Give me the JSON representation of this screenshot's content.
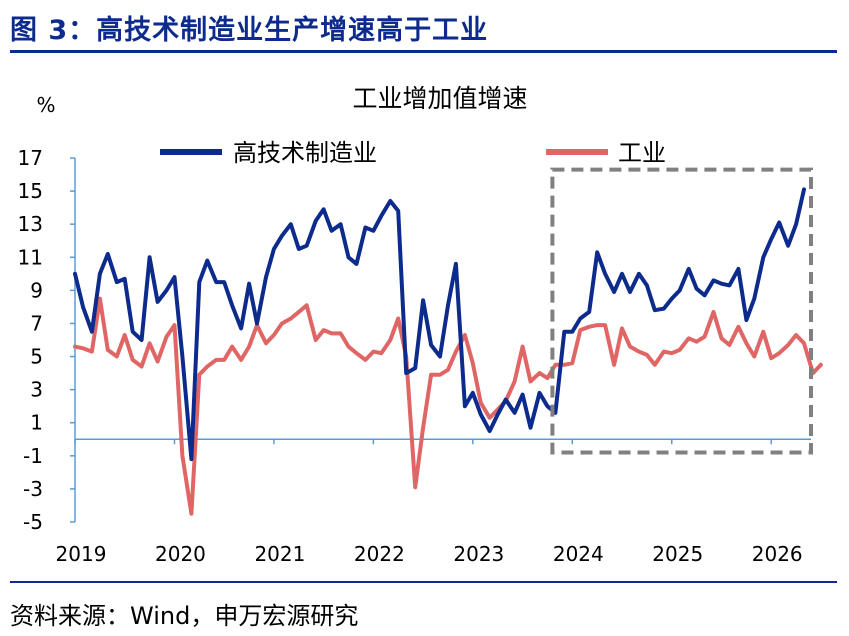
{
  "figure": {
    "title": "图 3：高技术制造业生产增速高于工业",
    "source": "资料来源：Wind，申万宏源研究"
  },
  "colors": {
    "brand": "#0d2b8c",
    "series_high_tech": "#0d2b8c",
    "series_industry": "#e06666",
    "axis": "#5b9bd5",
    "highlight_box": "#808080"
  },
  "chart_data": {
    "type": "line",
    "title": "工业增加值增速",
    "ylabel": "%",
    "ylim": [
      -5,
      17
    ],
    "yticks": [
      -5,
      -3,
      -1,
      1,
      3,
      5,
      7,
      9,
      11,
      13,
      15,
      17
    ],
    "xlim": [
      2019.0,
      2026.4
    ],
    "xticks": [
      2019,
      2020,
      2021,
      2022,
      2023,
      2024,
      2025,
      2026
    ],
    "legend_position": "top",
    "highlight_box": {
      "x": [
        2023.8,
        2026.4
      ],
      "y": [
        -0.8,
        16.3
      ]
    },
    "series": [
      {
        "name": "高技术制造业",
        "color": "#0d2b8c",
        "points": [
          [
            2019.0,
            10.0
          ],
          [
            2019.08,
            8.0
          ],
          [
            2019.17,
            6.5
          ],
          [
            2019.25,
            10.0
          ],
          [
            2019.33,
            11.2
          ],
          [
            2019.42,
            9.5
          ],
          [
            2019.5,
            9.7
          ],
          [
            2019.58,
            6.5
          ],
          [
            2019.67,
            6.0
          ],
          [
            2019.75,
            11.0
          ],
          [
            2019.83,
            8.3
          ],
          [
            2019.92,
            9.0
          ],
          [
            2020.0,
            9.8
          ],
          [
            2020.08,
            5.0
          ],
          [
            2020.17,
            -1.2
          ],
          [
            2020.25,
            9.5
          ],
          [
            2020.33,
            10.8
          ],
          [
            2020.42,
            9.5
          ],
          [
            2020.5,
            9.5
          ],
          [
            2020.58,
            8.1
          ],
          [
            2020.67,
            6.7
          ],
          [
            2020.75,
            9.4
          ],
          [
            2020.83,
            7.0
          ],
          [
            2020.92,
            9.8
          ],
          [
            2021.0,
            11.5
          ],
          [
            2021.08,
            12.3
          ],
          [
            2021.17,
            13.0
          ],
          [
            2021.25,
            11.5
          ],
          [
            2021.33,
            11.7
          ],
          [
            2021.42,
            13.2
          ],
          [
            2021.5,
            13.9
          ],
          [
            2021.58,
            12.6
          ],
          [
            2021.67,
            13.0
          ],
          [
            2021.75,
            11.0
          ],
          [
            2021.83,
            10.6
          ],
          [
            2021.92,
            12.8
          ],
          [
            2022.0,
            12.6
          ],
          [
            2022.08,
            13.5
          ],
          [
            2022.17,
            14.4
          ],
          [
            2022.25,
            13.8
          ],
          [
            2022.33,
            4.0
          ],
          [
            2022.42,
            4.3
          ],
          [
            2022.5,
            8.4
          ],
          [
            2022.58,
            5.7
          ],
          [
            2022.67,
            5.0
          ],
          [
            2022.75,
            8.1
          ],
          [
            2022.83,
            10.6
          ],
          [
            2022.92,
            2.0
          ],
          [
            2023.0,
            2.8
          ],
          [
            2023.08,
            1.5
          ],
          [
            2023.17,
            0.5
          ],
          [
            2023.25,
            1.5
          ],
          [
            2023.33,
            2.4
          ],
          [
            2023.42,
            1.6
          ],
          [
            2023.5,
            2.7
          ],
          [
            2023.58,
            0.7
          ],
          [
            2023.67,
            2.8
          ],
          [
            2023.75,
            2.0
          ],
          [
            2023.83,
            1.6
          ],
          [
            2023.92,
            6.5
          ],
          [
            2024.0,
            6.5
          ],
          [
            2024.08,
            7.3
          ],
          [
            2024.17,
            7.7
          ],
          [
            2024.25,
            11.3
          ],
          [
            2024.33,
            10.0
          ],
          [
            2024.42,
            8.9
          ],
          [
            2024.5,
            10.0
          ],
          [
            2024.58,
            8.9
          ],
          [
            2024.67,
            10.0
          ],
          [
            2024.75,
            9.3
          ],
          [
            2024.83,
            7.8
          ],
          [
            2024.92,
            7.9
          ],
          [
            2025.0,
            8.5
          ],
          [
            2025.08,
            9.0
          ],
          [
            2025.17,
            10.3
          ],
          [
            2025.25,
            9.1
          ],
          [
            2025.33,
            8.7
          ],
          [
            2025.42,
            9.6
          ],
          [
            2025.5,
            9.4
          ],
          [
            2025.58,
            9.3
          ],
          [
            2025.67,
            10.3
          ],
          [
            2025.75,
            7.2
          ],
          [
            2025.83,
            8.5
          ],
          [
            2025.92,
            11.0
          ],
          [
            2026.0,
            12.1
          ],
          [
            2026.08,
            13.1
          ],
          [
            2026.17,
            11.7
          ],
          [
            2026.25,
            13.0
          ],
          [
            2026.33,
            15.1
          ]
        ]
      },
      {
        "name": "工业",
        "color": "#e06666",
        "points": [
          [
            2019.0,
            5.6
          ],
          [
            2019.08,
            5.5
          ],
          [
            2019.17,
            5.3
          ],
          [
            2019.25,
            8.5
          ],
          [
            2019.33,
            5.4
          ],
          [
            2019.42,
            5.0
          ],
          [
            2019.5,
            6.3
          ],
          [
            2019.58,
            4.8
          ],
          [
            2019.67,
            4.4
          ],
          [
            2019.75,
            5.8
          ],
          [
            2019.83,
            4.7
          ],
          [
            2019.92,
            6.2
          ],
          [
            2020.0,
            6.9
          ],
          [
            2020.08,
            -1.0
          ],
          [
            2020.17,
            -4.5
          ],
          [
            2020.25,
            3.9
          ],
          [
            2020.33,
            4.4
          ],
          [
            2020.42,
            4.8
          ],
          [
            2020.5,
            4.8
          ],
          [
            2020.58,
            5.6
          ],
          [
            2020.67,
            4.8
          ],
          [
            2020.75,
            5.6
          ],
          [
            2020.83,
            6.9
          ],
          [
            2020.92,
            5.8
          ],
          [
            2021.0,
            6.3
          ],
          [
            2021.08,
            7.0
          ],
          [
            2021.17,
            7.3
          ],
          [
            2021.25,
            7.7
          ],
          [
            2021.33,
            8.1
          ],
          [
            2021.42,
            6.0
          ],
          [
            2021.5,
            6.6
          ],
          [
            2021.58,
            6.4
          ],
          [
            2021.67,
            6.4
          ],
          [
            2021.75,
            5.6
          ],
          [
            2021.83,
            5.2
          ],
          [
            2021.92,
            4.8
          ],
          [
            2022.0,
            5.3
          ],
          [
            2022.08,
            5.2
          ],
          [
            2022.17,
            6.0
          ],
          [
            2022.25,
            7.3
          ],
          [
            2022.33,
            5.0
          ],
          [
            2022.42,
            -2.9
          ],
          [
            2022.5,
            0.7
          ],
          [
            2022.58,
            3.9
          ],
          [
            2022.67,
            3.9
          ],
          [
            2022.75,
            4.2
          ],
          [
            2022.83,
            5.3
          ],
          [
            2022.92,
            6.3
          ],
          [
            2023.0,
            4.6
          ],
          [
            2023.08,
            2.2
          ],
          [
            2023.17,
            1.3
          ],
          [
            2023.25,
            1.8
          ],
          [
            2023.33,
            2.3
          ],
          [
            2023.42,
            3.5
          ],
          [
            2023.5,
            5.6
          ],
          [
            2023.58,
            3.5
          ],
          [
            2023.67,
            4.0
          ],
          [
            2023.75,
            3.7
          ],
          [
            2023.83,
            4.5
          ],
          [
            2023.92,
            4.5
          ],
          [
            2024.0,
            4.6
          ],
          [
            2024.08,
            6.6
          ],
          [
            2024.17,
            6.8
          ],
          [
            2024.25,
            6.9
          ],
          [
            2024.33,
            6.9
          ],
          [
            2024.42,
            4.5
          ],
          [
            2024.5,
            6.7
          ],
          [
            2024.58,
            5.6
          ],
          [
            2024.67,
            5.3
          ],
          [
            2024.75,
            5.1
          ],
          [
            2024.83,
            4.5
          ],
          [
            2024.92,
            5.3
          ],
          [
            2025.0,
            5.2
          ],
          [
            2025.08,
            5.4
          ],
          [
            2025.17,
            6.1
          ],
          [
            2025.25,
            5.9
          ],
          [
            2025.33,
            6.2
          ],
          [
            2025.42,
            7.7
          ],
          [
            2025.5,
            6.1
          ],
          [
            2025.58,
            5.7
          ],
          [
            2025.67,
            6.8
          ],
          [
            2025.75,
            5.8
          ],
          [
            2025.83,
            5.0
          ],
          [
            2025.92,
            6.5
          ],
          [
            2026.0,
            4.9
          ],
          [
            2026.08,
            5.2
          ],
          [
            2026.17,
            5.7
          ],
          [
            2026.25,
            6.3
          ],
          [
            2026.33,
            5.8
          ],
          [
            2026.42,
            4.0
          ],
          [
            2026.5,
            4.5
          ]
        ]
      }
    ]
  }
}
